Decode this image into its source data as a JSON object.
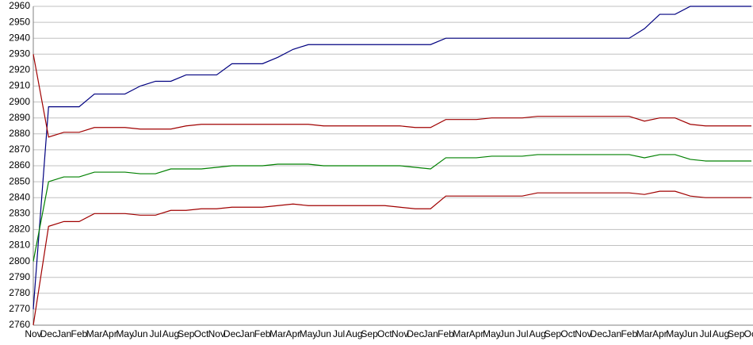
{
  "chart_data": {
    "type": "line",
    "categories": [
      "Nov",
      "Dec",
      "Jan",
      "Feb",
      "Mar",
      "Apr",
      "May",
      "Jun",
      "Jul",
      "Aug",
      "Sep",
      "Oct",
      "Nov",
      "Dec",
      "Jan",
      "Feb",
      "Mar",
      "Apr",
      "May",
      "Jun",
      "Jul",
      "Aug",
      "Sep",
      "Oct",
      "Nov",
      "Dec",
      "Jan",
      "Feb",
      "Mar",
      "Apr",
      "May",
      "Jun",
      "Jul",
      "Aug",
      "Sep",
      "Oct",
      "Nov",
      "Dec",
      "Jan",
      "Feb",
      "Mar",
      "Apr",
      "May",
      "Jun",
      "Jul",
      "Aug",
      "Sep",
      "Oct"
    ],
    "series": [
      {
        "color": "#000080",
        "values": [
          2770,
          2897,
          2897,
          2897,
          2905,
          2905,
          2905,
          2910,
          2913,
          2913,
          2917,
          2917,
          2917,
          2924,
          2924,
          2924,
          2928,
          2933,
          2936,
          2936,
          2936,
          2936,
          2936,
          2936,
          2936,
          2936,
          2936,
          2940,
          2940,
          2940,
          2940,
          2940,
          2940,
          2940,
          2940,
          2940,
          2940,
          2940,
          2940,
          2940,
          2946,
          2955,
          2955,
          2960,
          2960,
          2960,
          2960,
          2960
        ]
      },
      {
        "color": "#a00000",
        "values": [
          2930,
          2878,
          2881,
          2881,
          2884,
          2884,
          2884,
          2883,
          2883,
          2883,
          2885,
          2886,
          2886,
          2886,
          2886,
          2886,
          2886,
          2886,
          2886,
          2885,
          2885,
          2885,
          2885,
          2885,
          2885,
          2884,
          2884,
          2889,
          2889,
          2889,
          2890,
          2890,
          2890,
          2891,
          2891,
          2891,
          2891,
          2891,
          2891,
          2891,
          2888,
          2890,
          2890,
          2886,
          2885,
          2885,
          2885,
          2885
        ]
      },
      {
        "color": "#008000",
        "values": [
          2800,
          2850,
          2853,
          2853,
          2856,
          2856,
          2856,
          2855,
          2855,
          2858,
          2858,
          2858,
          2859,
          2860,
          2860,
          2860,
          2861,
          2861,
          2861,
          2860,
          2860,
          2860,
          2860,
          2860,
          2860,
          2859,
          2858,
          2865,
          2865,
          2865,
          2866,
          2866,
          2866,
          2867,
          2867,
          2867,
          2867,
          2867,
          2867,
          2867,
          2865,
          2867,
          2867,
          2864,
          2863,
          2863,
          2863,
          2863
        ]
      },
      {
        "color": "#a00000",
        "values": [
          2760,
          2822,
          2825,
          2825,
          2830,
          2830,
          2830,
          2829,
          2829,
          2832,
          2832,
          2833,
          2833,
          2834,
          2834,
          2834,
          2835,
          2836,
          2835,
          2835,
          2835,
          2835,
          2835,
          2835,
          2834,
          2833,
          2833,
          2841,
          2841,
          2841,
          2841,
          2841,
          2841,
          2843,
          2843,
          2843,
          2843,
          2843,
          2843,
          2843,
          2842,
          2844,
          2844,
          2841,
          2840,
          2840,
          2840,
          2840
        ]
      }
    ],
    "ylim": [
      2760,
      2960
    ],
    "yticks": [
      2760,
      2770,
      2780,
      2790,
      2800,
      2810,
      2820,
      2830,
      2840,
      2850,
      2860,
      2870,
      2880,
      2890,
      2900,
      2910,
      2920,
      2930,
      2940,
      2950,
      2960
    ],
    "grid": true
  }
}
